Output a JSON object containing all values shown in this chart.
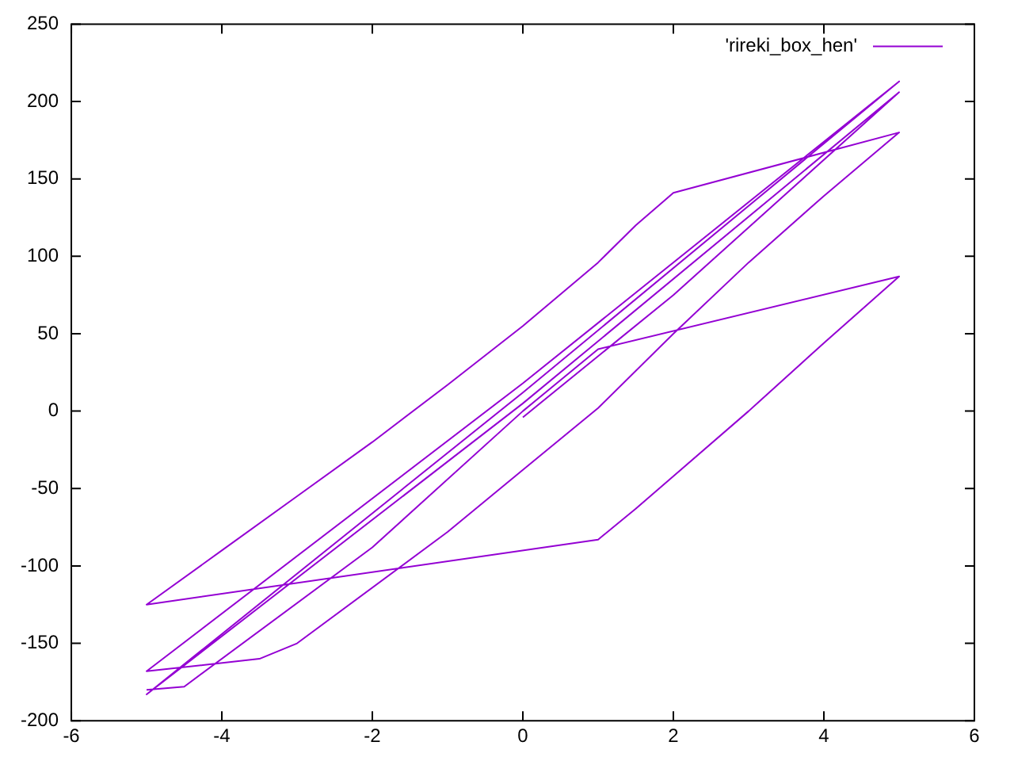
{
  "chart_data": {
    "type": "line",
    "x": [
      0,
      2,
      5,
      0,
      -5,
      0,
      5,
      0,
      -5,
      -3.5,
      -3,
      -1,
      0,
      1,
      2,
      3,
      4,
      5,
      2,
      1.5,
      1,
      0,
      -1,
      -2,
      -3,
      -4,
      -5,
      1,
      1.5,
      2,
      3,
      4,
      5,
      1,
      0,
      -2,
      -4.5,
      -5
    ],
    "series": [
      {
        "name": "'rireki_box_hen'",
        "color": "#9400d3",
        "values": [
          -4,
          75,
          206,
          5,
          -183,
          12,
          213,
          18,
          -168,
          -160,
          -150,
          -78,
          -38,
          2,
          50,
          96,
          139,
          180,
          141,
          120,
          96,
          55,
          17,
          -20,
          -55,
          -90,
          -125,
          -83,
          -63,
          -42,
          0,
          44,
          87,
          40,
          0,
          -88,
          -178,
          -180
        ]
      }
    ],
    "xlim": [
      -6,
      6
    ],
    "xticks": [
      -6,
      -4,
      -2,
      0,
      2,
      4,
      6
    ],
    "ylim": [
      -200,
      250
    ],
    "yticks": [
      -200,
      -150,
      -100,
      -50,
      0,
      50,
      100,
      150,
      200,
      250
    ],
    "grid": false,
    "legend": "top right",
    "marker": "none",
    "line_style": "solid"
  }
}
